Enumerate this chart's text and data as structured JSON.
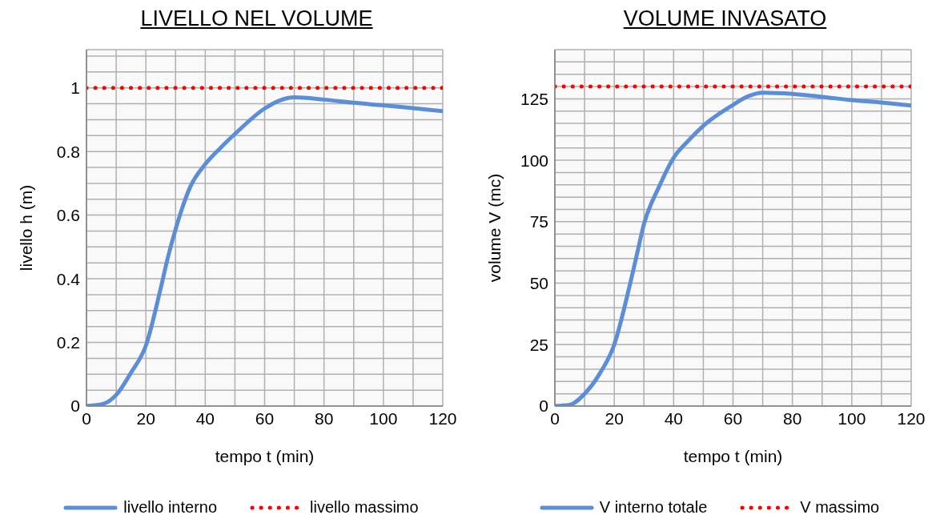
{
  "chart_data": [
    {
      "type": "line",
      "title": "LIVELLO NEL VOLUME",
      "xlabel": "tempo t (min)",
      "ylabel": "livello h (m)",
      "xlim": [
        0,
        120
      ],
      "ylim": [
        0,
        1.12
      ],
      "xticks": [
        0,
        {
          "value": 10,
          "label": null
        },
        20,
        {
          "value": 30,
          "label": null
        },
        40,
        {
          "value": 50,
          "label": null
        },
        60,
        {
          "value": 70,
          "label": null
        },
        80,
        {
          "value": 90,
          "label": null
        },
        100,
        {
          "value": 110,
          "label": null
        },
        120
      ],
      "yticks": [
        0,
        {
          "value": 0.05,
          "label": null
        },
        {
          "value": 0.1,
          "label": null
        },
        {
          "value": 0.15,
          "label": null
        },
        0.2,
        {
          "value": 0.25,
          "label": null
        },
        {
          "value": 0.3,
          "label": null
        },
        {
          "value": 0.35,
          "label": null
        },
        0.4,
        {
          "value": 0.45,
          "label": null
        },
        {
          "value": 0.5,
          "label": null
        },
        {
          "value": 0.55,
          "label": null
        },
        0.6,
        {
          "value": 0.65,
          "label": null
        },
        {
          "value": 0.7,
          "label": null
        },
        {
          "value": 0.75,
          "label": null
        },
        0.8,
        {
          "value": 0.85,
          "label": null
        },
        {
          "value": 0.9,
          "label": null
        },
        {
          "value": 0.95,
          "label": null
        },
        1,
        {
          "value": 1.05,
          "label": null
        },
        {
          "value": 1.1,
          "label": null
        }
      ],
      "grid": true,
      "legend": "bottom",
      "series": [
        {
          "name": "livello interno",
          "color": "#5b8ed6",
          "line_style": "solid",
          "x": [
            0,
            5,
            10,
            15,
            20,
            25,
            27.5,
            30,
            35,
            40,
            45,
            50,
            60,
            65,
            70,
            80,
            90,
            100,
            110,
            120
          ],
          "values": [
            0,
            0.005,
            0.035,
            0.105,
            0.19,
            0.37,
            0.47,
            0.555,
            0.69,
            0.76,
            0.81,
            0.855,
            0.935,
            0.96,
            0.97,
            0.963,
            0.953,
            0.945,
            0.936,
            0.927
          ]
        },
        {
          "name": "livello massimo",
          "color": "#ff0000",
          "line_style": "dotted",
          "x": [
            0,
            120
          ],
          "values": [
            1,
            1
          ]
        }
      ]
    },
    {
      "type": "line",
      "title": "VOLUME INVASATO",
      "xlabel": "tempo t (min)",
      "ylabel": "volume V (mc)",
      "xlim": [
        0,
        120
      ],
      "ylim": [
        0,
        145
      ],
      "xticks": [
        0,
        {
          "value": 10,
          "label": null
        },
        20,
        {
          "value": 30,
          "label": null
        },
        40,
        {
          "value": 50,
          "label": null
        },
        60,
        {
          "value": 70,
          "label": null
        },
        80,
        {
          "value": 90,
          "label": null
        },
        100,
        {
          "value": 110,
          "label": null
        },
        120
      ],
      "yticks": [
        0,
        {
          "value": 5,
          "label": null
        },
        {
          "value": 10,
          "label": null
        },
        {
          "value": 15,
          "label": null
        },
        {
          "value": 20,
          "label": null
        },
        25,
        {
          "value": 30,
          "label": null
        },
        {
          "value": 35,
          "label": null
        },
        {
          "value": 40,
          "label": null
        },
        {
          "value": 45,
          "label": null
        },
        50,
        {
          "value": 55,
          "label": null
        },
        {
          "value": 60,
          "label": null
        },
        {
          "value": 65,
          "label": null
        },
        {
          "value": 70,
          "label": null
        },
        75,
        {
          "value": 80,
          "label": null
        },
        {
          "value": 85,
          "label": null
        },
        {
          "value": 90,
          "label": null
        },
        {
          "value": 95,
          "label": null
        },
        100,
        {
          "value": 105,
          "label": null
        },
        {
          "value": 110,
          "label": null
        },
        {
          "value": 115,
          "label": null
        },
        {
          "value": 120,
          "label": null
        },
        125,
        {
          "value": 130,
          "label": null
        },
        {
          "value": 135,
          "label": null
        },
        {
          "value": 140,
          "label": null
        }
      ],
      "grid": true,
      "legend": "bottom",
      "series": [
        {
          "name": "V interno totale",
          "color": "#5b8ed6",
          "line_style": "solid",
          "x": [
            0,
            5,
            10,
            15,
            20,
            25,
            27.5,
            30,
            35,
            40,
            45,
            50,
            60,
            65,
            70,
            80,
            90,
            100,
            110,
            120
          ],
          "values": [
            0,
            0.5,
            5,
            13,
            25,
            48,
            61,
            74,
            89,
            101,
            108,
            114,
            122.5,
            126,
            127.5,
            127,
            125.8,
            124.5,
            123.5,
            122.3
          ]
        },
        {
          "name": "V massimo",
          "color": "#ff0000",
          "line_style": "dotted",
          "x": [
            0,
            120
          ],
          "values": [
            130,
            130
          ]
        }
      ]
    }
  ]
}
